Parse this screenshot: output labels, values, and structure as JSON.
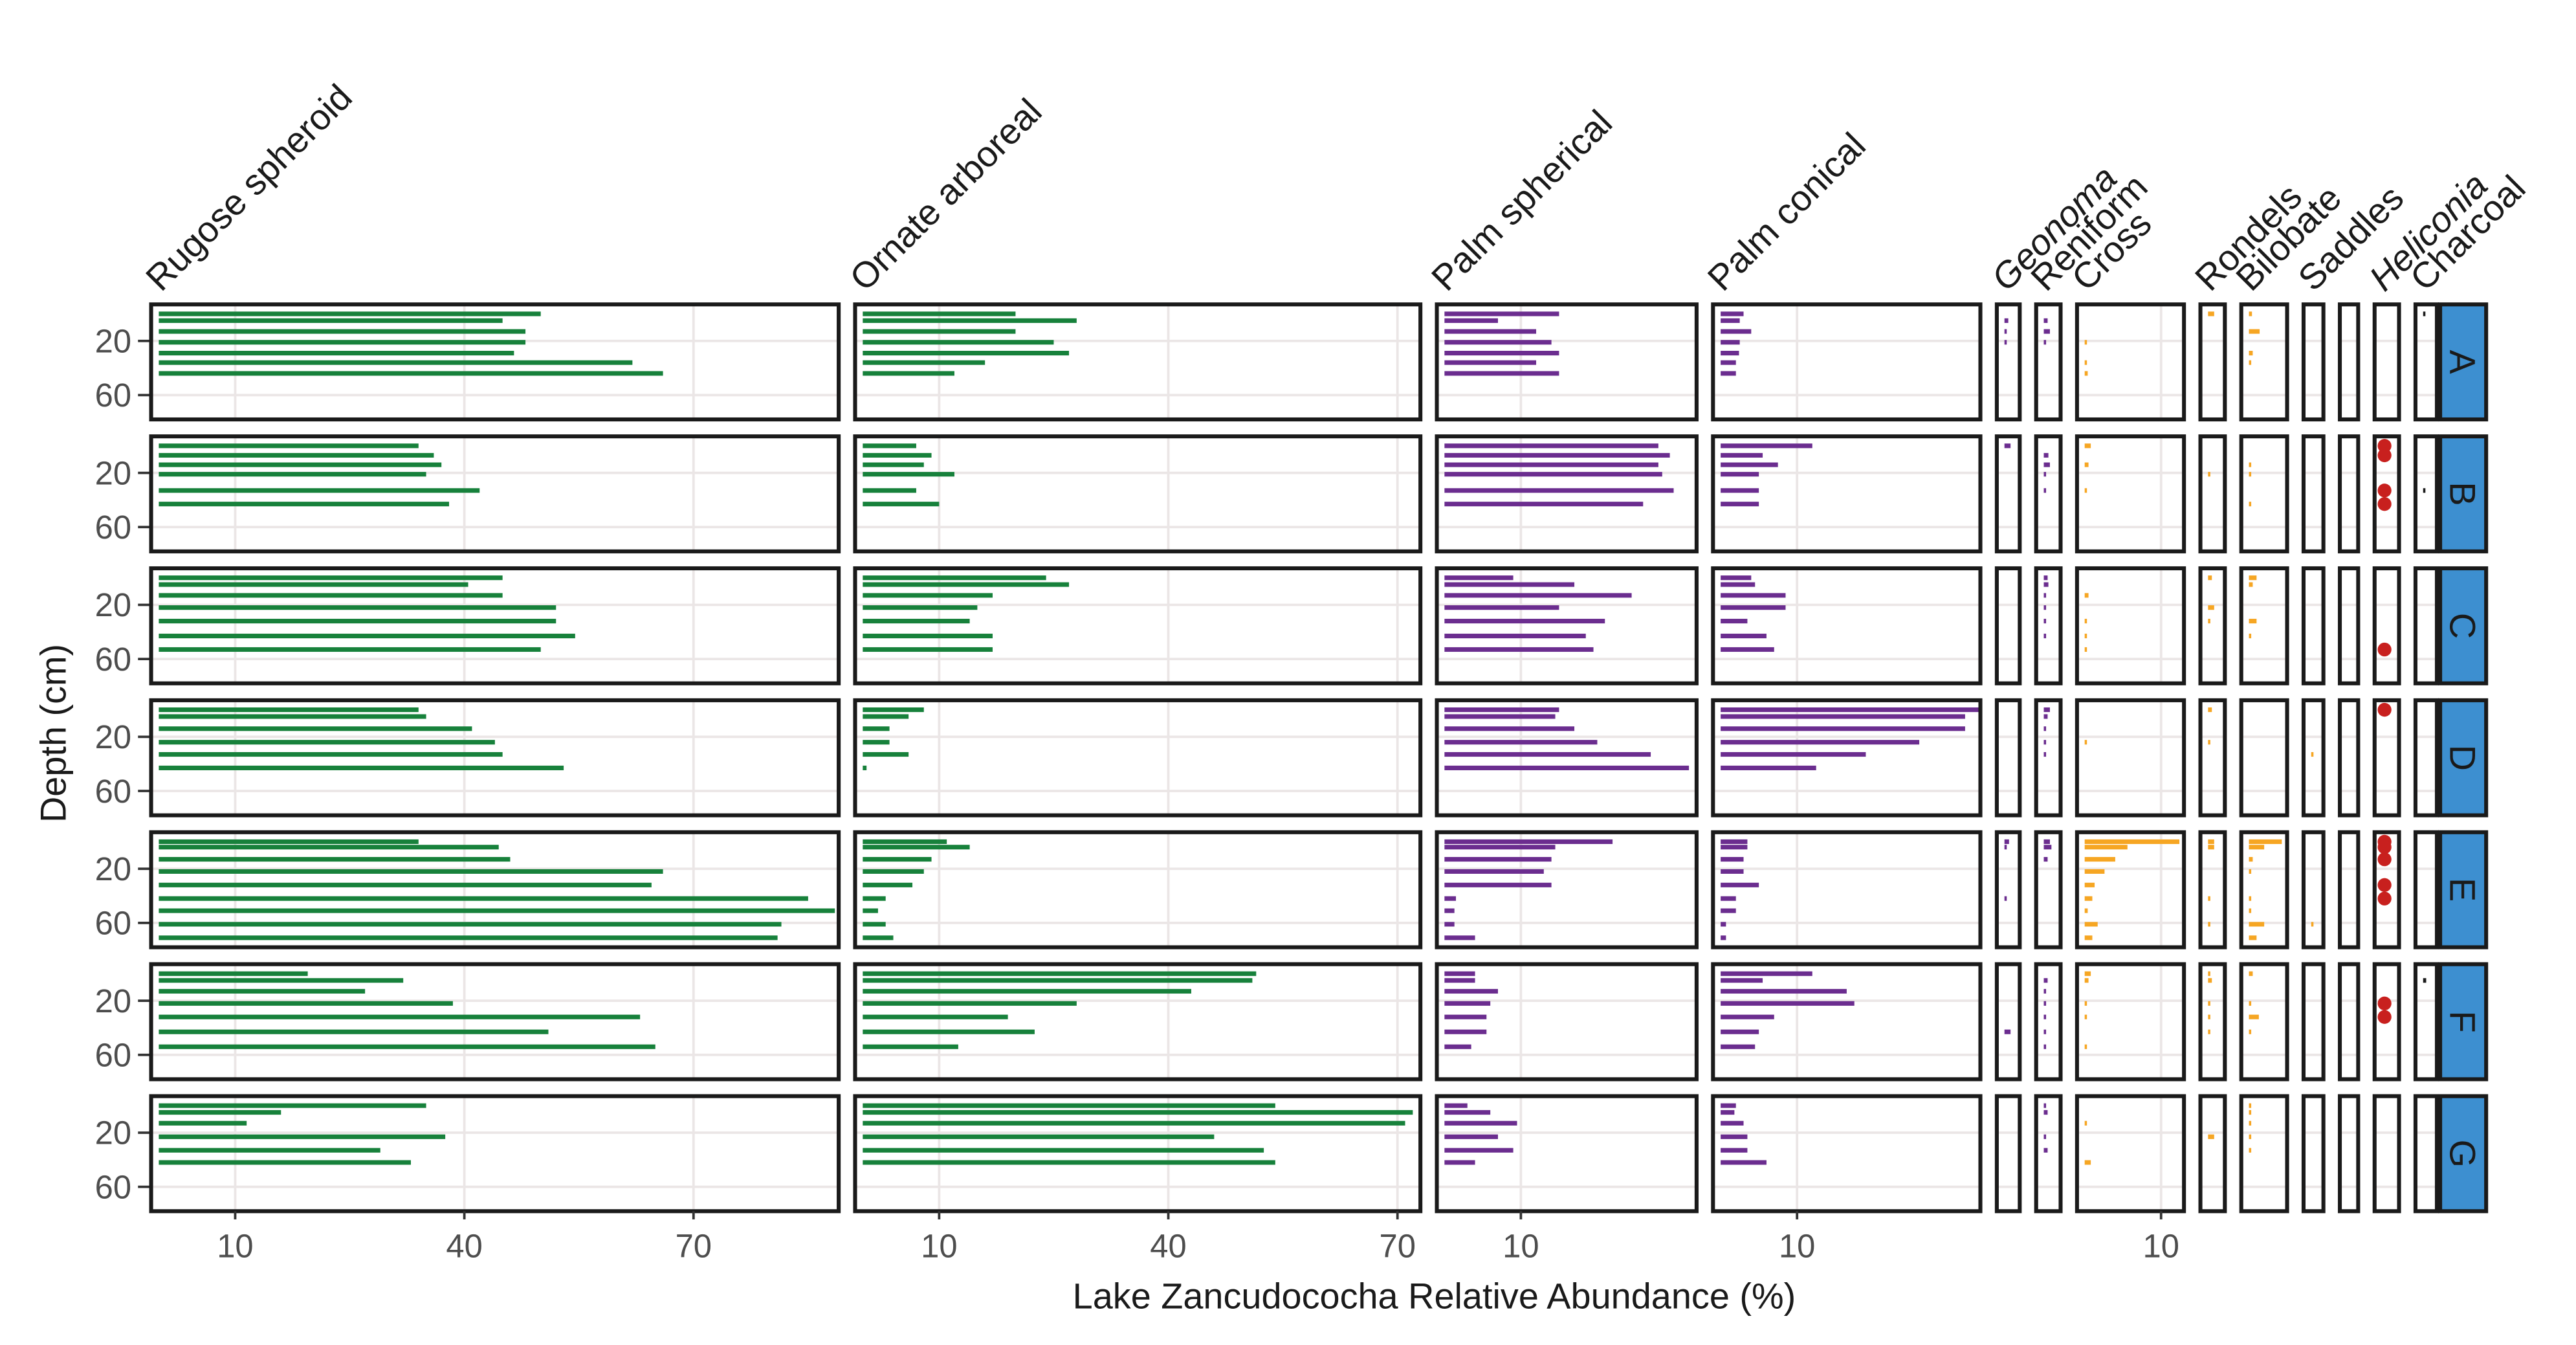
{
  "chart_data": {
    "type": "strip",
    "x_label": "Lake Zancudococha Relative Abundance (%)",
    "y_label": "Depth (cm)",
    "ylim": [
      -7,
      78
    ],
    "y_reversed": true,
    "yticks": [
      20,
      60
    ],
    "grid": true,
    "strip_color": "#3d8fd0",
    "sites": [
      {
        "label": "A",
        "depths": [
          0,
          5,
          13,
          21,
          29,
          36,
          44
        ]
      },
      {
        "label": "B",
        "depths": [
          0,
          7,
          14,
          21,
          33,
          43
        ]
      },
      {
        "label": "C",
        "depths": [
          0,
          5,
          13,
          22,
          32,
          43,
          53
        ]
      },
      {
        "label": "D",
        "depths": [
          0,
          5,
          14,
          24,
          33,
          43
        ]
      },
      {
        "label": "E",
        "depths": [
          0,
          4,
          13,
          22,
          32,
          42,
          51,
          61,
          71
        ]
      },
      {
        "label": "F",
        "depths": [
          0,
          5,
          13,
          22,
          32,
          43,
          54
        ]
      },
      {
        "label": "G",
        "depths": [
          0,
          5,
          13,
          23,
          33,
          42
        ]
      }
    ],
    "taxa": [
      {
        "name": "Rugose spheroid",
        "italic": false,
        "mark": "bar",
        "color": "#17813b",
        "xlim": [
          -1,
          89
        ],
        "xticks": [
          10,
          40,
          70
        ],
        "values": [
          [
            50,
            45,
            48,
            48,
            46.5,
            62,
            66
          ],
          [
            34,
            36,
            37,
            35,
            42,
            38
          ],
          [
            45,
            40.5,
            45,
            52,
            52,
            54.5,
            50
          ],
          [
            34,
            35,
            41,
            44,
            45,
            53
          ],
          [
            34,
            44.5,
            46,
            66,
            64.5,
            85,
            88.5,
            81.5,
            81
          ],
          [
            19.5,
            32,
            27,
            38.5,
            63,
            51,
            65
          ],
          [
            35,
            16,
            11.5,
            37.5,
            29,
            33
          ]
        ]
      },
      {
        "name": "Ornate arboreal",
        "italic": false,
        "mark": "bar",
        "color": "#17813b",
        "xlim": [
          -1,
          73
        ],
        "xticks": [
          10,
          40,
          70
        ],
        "values": [
          [
            20,
            28,
            20,
            25,
            27,
            16,
            12
          ],
          [
            7,
            9,
            8,
            12,
            7,
            10
          ],
          [
            24,
            27,
            17,
            15,
            14,
            17,
            17
          ],
          [
            8,
            6,
            3.5,
            3.5,
            6,
            0.5
          ],
          [
            11,
            14,
            9,
            8,
            6.5,
            3,
            2,
            3,
            4
          ],
          [
            51.5,
            51,
            43,
            28,
            19,
            22.5,
            12.5
          ],
          [
            54,
            72,
            71,
            46,
            52.5,
            54
          ]
        ]
      },
      {
        "name": "Palm spherical",
        "italic": false,
        "mark": "bar",
        "color": "#6b2d8f",
        "xlim": [
          -1,
          33
        ],
        "xticks": [
          10
        ],
        "values": [
          [
            15,
            7,
            12,
            14,
            15,
            12,
            15
          ],
          [
            28,
            29.5,
            28,
            28.5,
            30,
            26
          ],
          [
            9,
            17,
            24.5,
            15,
            21,
            18.5,
            19.5
          ],
          [
            15,
            14.5,
            17,
            20,
            27,
            32
          ],
          [
            22,
            14.5,
            14,
            13,
            14,
            1.5,
            1.3,
            1.3,
            4
          ],
          [
            4,
            4,
            7,
            6,
            5.5,
            5.5,
            3.5
          ],
          [
            3,
            6,
            9.5,
            7,
            9,
            4
          ]
        ]
      },
      {
        "name": "Palm conical",
        "italic": false,
        "mark": "bar",
        "color": "#6b2d8f",
        "xlim": [
          -1,
          34
        ],
        "xticks": [
          10
        ],
        "values": [
          [
            3,
            2.5,
            4,
            2.5,
            2.4,
            2,
            2
          ],
          [
            12,
            5.5,
            7.5,
            5,
            5,
            5
          ],
          [
            4,
            4.5,
            8.5,
            8.5,
            3.5,
            6,
            7
          ],
          [
            34,
            32,
            32,
            26,
            19,
            12.5
          ],
          [
            3.5,
            3.5,
            3,
            3,
            5,
            2,
            2,
            0.7,
            0.7
          ],
          [
            12,
            5.5,
            16.5,
            17.5,
            7,
            5,
            4.5
          ],
          [
            2,
            1.8,
            3,
            3.5,
            3.5,
            6
          ]
        ]
      },
      {
        "name": "Geonoma",
        "italic": true,
        "mark": "bar",
        "color": "#6b2d8f",
        "xlim": [
          -1,
          2
        ],
        "xticks": [],
        "values": [
          [
            null,
            0.5,
            0.3,
            0.3,
            null,
            null,
            null
          ],
          [
            0.8,
            null,
            null,
            null,
            null,
            null
          ],
          [
            null,
            null,
            null,
            null,
            null,
            null,
            null
          ],
          [
            null,
            null,
            null,
            null,
            null,
            null
          ],
          [
            0.6,
            0.3,
            null,
            null,
            null,
            0.3,
            null,
            null,
            null
          ],
          [
            null,
            null,
            null,
            null,
            null,
            0.8,
            null
          ],
          [
            null,
            null,
            null,
            null,
            null,
            null
          ]
        ]
      },
      {
        "name": "Reniform",
        "italic": false,
        "mark": "bar",
        "color": "#6b2d8f",
        "xlim": [
          -1,
          2.2
        ],
        "xticks": [],
        "values": [
          [
            null,
            0.5,
            0.8,
            0.3,
            null,
            null,
            null
          ],
          [
            null,
            0.6,
            0.8,
            0.3,
            0.3,
            null
          ],
          [
            0.5,
            0.6,
            0.3,
            0.3,
            0.3,
            0.3,
            null
          ],
          [
            0.8,
            0.5,
            0.3,
            0.3,
            0.3,
            null
          ],
          [
            0.8,
            1,
            0.5,
            null,
            null,
            null,
            null,
            null,
            null
          ],
          [
            null,
            0.5,
            0.3,
            0.3,
            0.3,
            0.3,
            0.3
          ],
          [
            0.3,
            0.5,
            null,
            0.3,
            0.5,
            null
          ]
        ]
      },
      {
        "name": "Cross",
        "italic": false,
        "mark": "bar",
        "color": "#f6a623",
        "xlim": [
          -1,
          13
        ],
        "xticks": [
          10
        ],
        "values": [
          [
            null,
            null,
            null,
            0.3,
            null,
            0.3,
            0.4
          ],
          [
            0.8,
            null,
            0.5,
            null,
            0.3,
            null
          ],
          [
            null,
            null,
            0.5,
            null,
            0.3,
            0.3,
            0.3
          ],
          [
            null,
            null,
            null,
            0.3,
            null,
            null
          ],
          [
            12.4,
            5.6,
            4,
            2.6,
            1.3,
            1,
            0.4,
            1.7,
            1
          ],
          [
            0.8,
            0.5,
            null,
            0.3,
            0.3,
            null,
            0.3
          ],
          [
            null,
            null,
            0.3,
            null,
            null,
            0.8
          ]
        ]
      },
      {
        "name": "Rondels",
        "italic": false,
        "mark": "bar",
        "color": "#f6a623",
        "xlim": [
          -1,
          2.2
        ],
        "xticks": [],
        "values": [
          [
            0.8,
            null,
            null,
            null,
            null,
            null,
            null
          ],
          [
            null,
            null,
            null,
            0.3,
            null,
            null
          ],
          [
            0.5,
            null,
            null,
            0.8,
            0.3,
            null,
            null
          ],
          [
            0.5,
            null,
            null,
            0.3,
            null,
            null
          ],
          [
            0.8,
            0.8,
            null,
            null,
            null,
            0.3,
            null,
            0.3,
            null
          ],
          [
            0.3,
            0.5,
            null,
            0.3,
            0.3,
            0.3,
            null
          ],
          [
            null,
            null,
            null,
            0.8,
            null,
            null
          ]
        ]
      },
      {
        "name": "Bilobate",
        "italic": false,
        "mark": "bar",
        "color": "#f6a623",
        "xlim": [
          -1,
          5
        ],
        "xticks": [],
        "values": [
          [
            0.4,
            null,
            1.4,
            null,
            0.5,
            0.3,
            null
          ],
          [
            null,
            null,
            0.3,
            0.3,
            null,
            0.3
          ],
          [
            1,
            0.5,
            null,
            null,
            1,
            0.3,
            null
          ],
          [
            null,
            null,
            null,
            null,
            null,
            null
          ],
          [
            4.3,
            2,
            0.5,
            0.3,
            null,
            0.3,
            0.3,
            2,
            1
          ],
          [
            0.5,
            null,
            null,
            0.3,
            1.3,
            0.3,
            null
          ],
          [
            0.3,
            0.3,
            0.3,
            0.3,
            0.3,
            null
          ]
        ]
      },
      {
        "name": "Saddles",
        "italic": false,
        "mark": "bar",
        "color": "#f6a623",
        "xlim": [
          -1,
          1.6
        ],
        "xticks": [],
        "values": [
          [
            null,
            null,
            null,
            null,
            null,
            null,
            null
          ],
          [
            null,
            null,
            null,
            null,
            null,
            null
          ],
          [
            null,
            null,
            null,
            null,
            null,
            null,
            null
          ],
          [
            null,
            null,
            null,
            null,
            0.3,
            null
          ],
          [
            null,
            null,
            null,
            null,
            null,
            null,
            null,
            0.3,
            null
          ],
          [
            null,
            null,
            null,
            null,
            null,
            null,
            null
          ],
          [
            null,
            null,
            null,
            null,
            null,
            null
          ]
        ]
      },
      {
        "name": null,
        "italic": false,
        "mark": "bar",
        "color": "#f6a623",
        "xlim": [
          -1,
          1.4
        ],
        "xticks": [],
        "values": [
          [
            null,
            null,
            null,
            null,
            null,
            null,
            null
          ],
          [
            null,
            null,
            null,
            null,
            null,
            null
          ],
          [
            null,
            null,
            null,
            null,
            null,
            null,
            null
          ],
          [
            null,
            null,
            null,
            null,
            null,
            null
          ],
          [
            null,
            null,
            null,
            null,
            null,
            null,
            null,
            null,
            null
          ],
          [
            null,
            null,
            null,
            null,
            null,
            null,
            null
          ],
          [
            null,
            null,
            null,
            null,
            null,
            null
          ]
        ]
      },
      {
        "name": "Heliconia",
        "italic": true,
        "mark": "point",
        "color": "#c8201e",
        "xlim": [
          -1,
          2.2
        ],
        "xticks": [],
        "values": [
          [
            null,
            null,
            null,
            null,
            null,
            null,
            null
          ],
          [
            0.3,
            0.3,
            null,
            null,
            0.3,
            0.3
          ],
          [
            null,
            null,
            null,
            null,
            null,
            null,
            0.3
          ],
          [
            0.3,
            null,
            null,
            null,
            null,
            null
          ],
          [
            0.3,
            0.3,
            0.3,
            null,
            0.3,
            0.3,
            null,
            null,
            null
          ],
          [
            null,
            null,
            null,
            0.3,
            0.3,
            null,
            null
          ],
          [
            null,
            null,
            null,
            null,
            null,
            null
          ]
        ]
      },
      {
        "name": "Charcoal",
        "italic": false,
        "mark": "bar",
        "color": "#1a1a1a",
        "xlim": [
          -1,
          1.8
        ],
        "xticks": [],
        "values": [
          [
            0.3,
            null,
            null,
            null,
            null,
            null,
            null
          ],
          [
            null,
            null,
            null,
            null,
            0.3,
            null
          ],
          [
            null,
            null,
            null,
            null,
            null,
            null,
            null
          ],
          [
            null,
            null,
            null,
            null,
            null,
            null
          ],
          [
            null,
            null,
            null,
            null,
            null,
            null,
            null,
            null,
            null
          ],
          [
            null,
            0.4,
            null,
            null,
            null,
            null,
            null
          ],
          [
            null,
            null,
            null,
            null,
            null,
            null
          ]
        ]
      }
    ]
  }
}
